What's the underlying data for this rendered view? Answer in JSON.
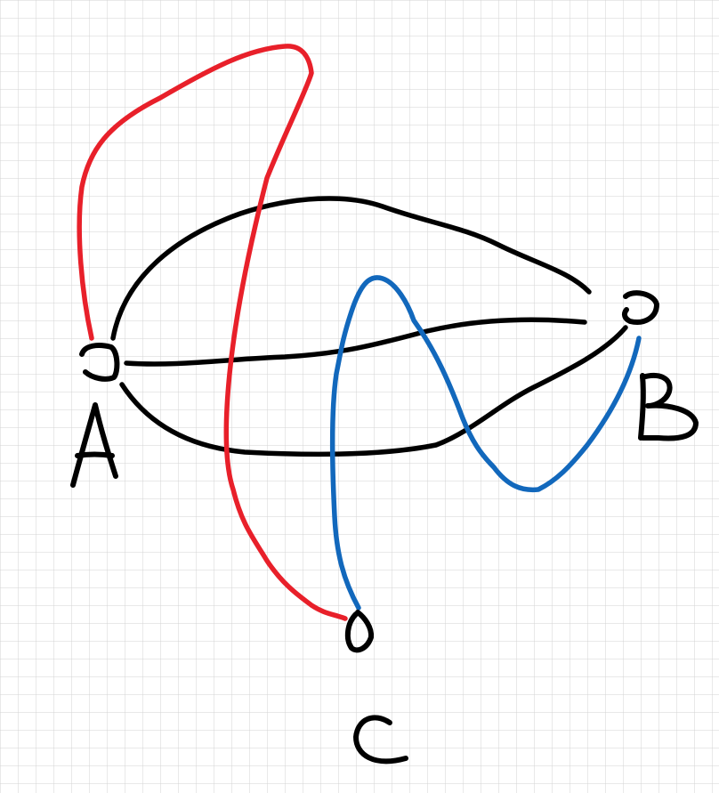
{
  "graph": {
    "nodes": [
      {
        "id": "A",
        "label": "A"
      },
      {
        "id": "B",
        "label": "B"
      },
      {
        "id": "C",
        "label": "C"
      }
    ],
    "edges": [
      {
        "from": "A",
        "to": "B",
        "color": "#000000"
      },
      {
        "from": "A",
        "to": "B",
        "color": "#000000"
      },
      {
        "from": "A",
        "to": "B",
        "color": "#000000"
      },
      {
        "from": "A",
        "to": "C",
        "color": "#e8202a"
      },
      {
        "from": "B",
        "to": "C",
        "color": "#1268bc"
      }
    ]
  },
  "colors": {
    "background": "#ffffff",
    "grid": "#d3d3d3",
    "ink": "#000000",
    "red_edge": "#e8202a",
    "blue_edge": "#1268bc"
  }
}
